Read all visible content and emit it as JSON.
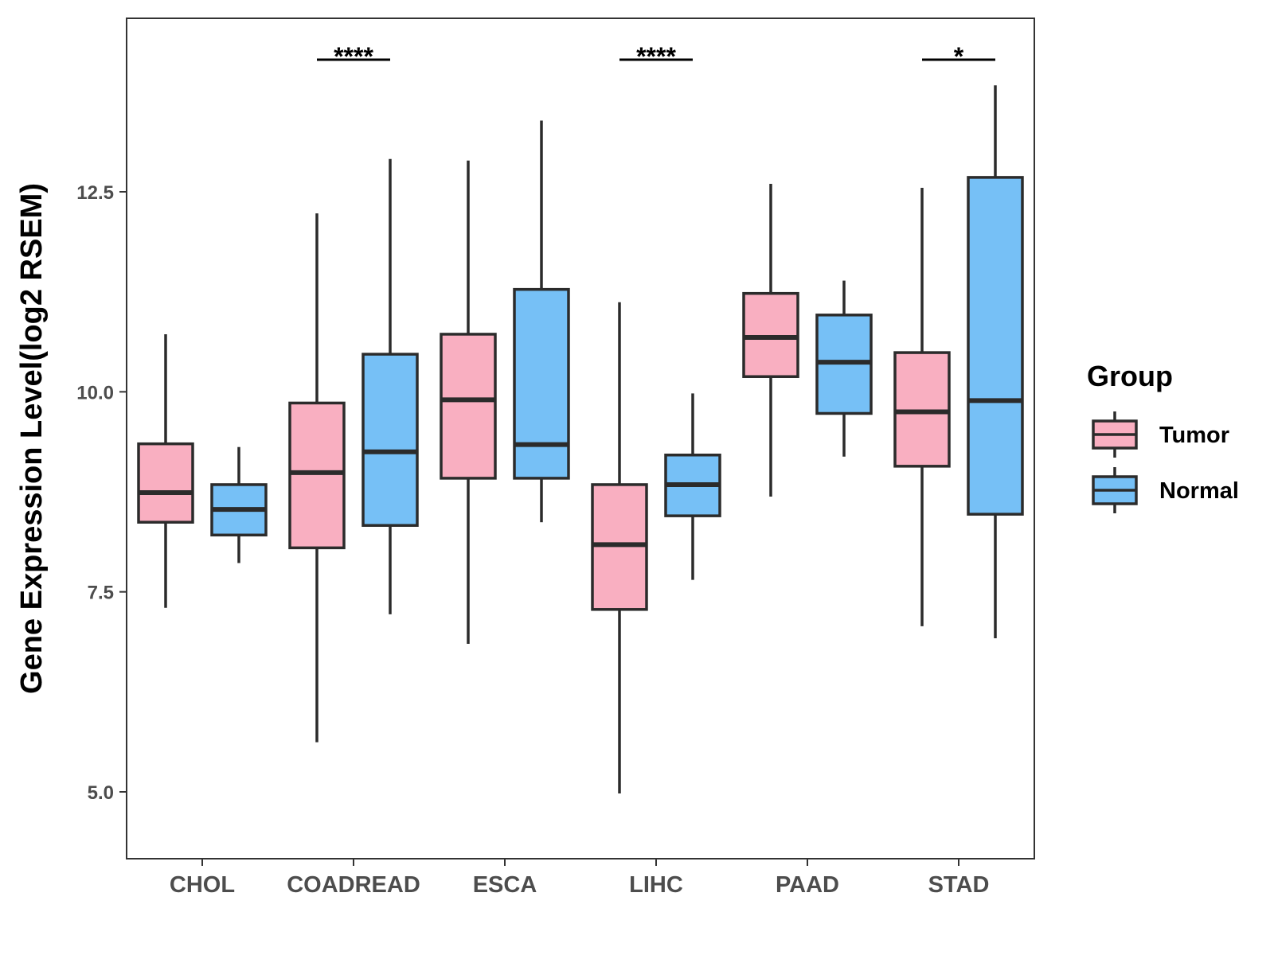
{
  "chart_data": {
    "type": "boxplot",
    "ylabel": "Gene Expression Level(log2 RSEM)",
    "xlabel": "",
    "ylim": [
      4.2,
      14.7
    ],
    "yticks": [
      5.0,
      7.5,
      10.0,
      12.5
    ],
    "ytick_labels": [
      "5.0",
      "7.5",
      "10.0",
      "12.5"
    ],
    "grid": false,
    "categories": [
      "CHOL",
      "COADREAD",
      "ESCA",
      "LIHC",
      "PAAD",
      "STAD"
    ],
    "legend": {
      "title": "Group",
      "position": "right",
      "entries": [
        {
          "name": "Tumor",
          "color": "#f9afc1"
        },
        {
          "name": "Normal",
          "color": "#76c0f6"
        }
      ]
    },
    "series": [
      {
        "name": "Tumor",
        "color": "#f9afc1",
        "boxes": [
          {
            "category": "CHOL",
            "whisker_low": 7.3,
            "q1": 8.37,
            "median": 8.74,
            "q3": 9.35,
            "whisker_high": 10.72
          },
          {
            "category": "COADREAD",
            "whisker_low": 5.62,
            "q1": 8.05,
            "median": 8.99,
            "q3": 9.86,
            "whisker_high": 12.23
          },
          {
            "category": "ESCA",
            "whisker_low": 6.85,
            "q1": 8.92,
            "median": 9.9,
            "q3": 10.72,
            "whisker_high": 12.89
          },
          {
            "category": "LIHC",
            "whisker_low": 4.98,
            "q1": 7.28,
            "median": 8.09,
            "q3": 8.84,
            "whisker_high": 11.12
          },
          {
            "category": "PAAD",
            "whisker_low": 8.69,
            "q1": 10.19,
            "median": 10.68,
            "q3": 11.23,
            "whisker_high": 12.6
          },
          {
            "category": "STAD",
            "whisker_low": 7.07,
            "q1": 9.07,
            "median": 9.75,
            "q3": 10.49,
            "whisker_high": 12.55
          }
        ]
      },
      {
        "name": "Normal",
        "color": "#76c0f6",
        "boxes": [
          {
            "category": "CHOL",
            "whisker_low": 7.86,
            "q1": 8.21,
            "median": 8.53,
            "q3": 8.84,
            "whisker_high": 9.31
          },
          {
            "category": "COADREAD",
            "whisker_low": 7.22,
            "q1": 8.33,
            "median": 9.25,
            "q3": 10.47,
            "whisker_high": 12.91
          },
          {
            "category": "ESCA",
            "whisker_low": 8.37,
            "q1": 8.92,
            "median": 9.34,
            "q3": 11.28,
            "whisker_high": 13.39
          },
          {
            "category": "LIHC",
            "whisker_low": 7.65,
            "q1": 8.45,
            "median": 8.84,
            "q3": 9.21,
            "whisker_high": 9.98
          },
          {
            "category": "PAAD",
            "whisker_low": 9.19,
            "q1": 9.73,
            "median": 10.37,
            "q3": 10.96,
            "whisker_high": 11.39
          },
          {
            "category": "STAD",
            "whisker_low": 6.92,
            "q1": 8.47,
            "median": 9.89,
            "q3": 12.68,
            "whisker_high": 13.83
          }
        ]
      }
    ],
    "annotations": [
      {
        "category": "COADREAD",
        "label": "****"
      },
      {
        "category": "LIHC",
        "label": "****"
      },
      {
        "category": "STAD",
        "label": "*"
      }
    ]
  }
}
